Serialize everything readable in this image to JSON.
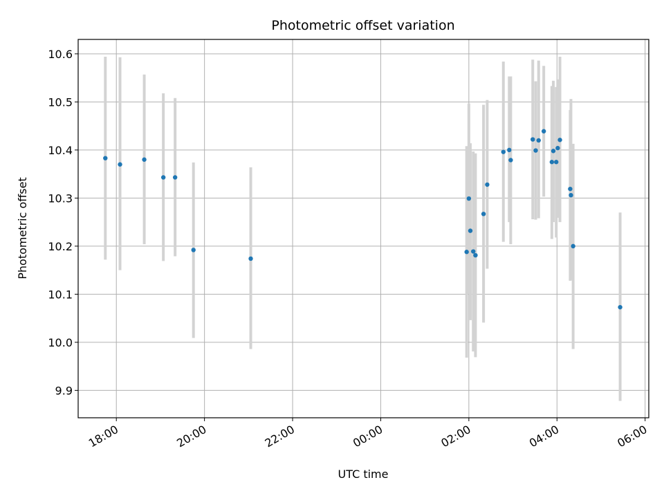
{
  "chart_data": {
    "type": "scatter",
    "title": "Photometric offset variation",
    "xlabel": "UTC time",
    "ylabel": "Photometric offset",
    "grid": true,
    "x_ticks": [
      "18:00",
      "20:00",
      "22:00",
      "00:00",
      "02:00",
      "04:00",
      "06:00"
    ],
    "y_ticks": [
      "9.9",
      "10.0",
      "10.1",
      "10.2",
      "10.3",
      "10.4",
      "10.5",
      "10.6"
    ],
    "xlim": [
      "17:08",
      "06:05"
    ],
    "ylim": [
      9.843,
      10.63
    ],
    "colors": {
      "points": "#1f77b4",
      "error_bars": "#d3d3d3",
      "grid": "#b0b0b0"
    },
    "points": [
      {
        "x": "17:45",
        "y": 10.383,
        "ylo": 10.172,
        "yhi": 10.594
      },
      {
        "x": "18:05",
        "y": 10.37,
        "ylo": 10.15,
        "yhi": 10.593
      },
      {
        "x": "18:38",
        "y": 10.38,
        "ylo": 10.204,
        "yhi": 10.557
      },
      {
        "x": "19:04",
        "y": 10.343,
        "ylo": 10.169,
        "yhi": 10.518
      },
      {
        "x": "19:20",
        "y": 10.343,
        "ylo": 10.179,
        "yhi": 10.508
      },
      {
        "x": "19:45",
        "y": 10.192,
        "ylo": 10.009,
        "yhi": 10.374
      },
      {
        "x": "21:03",
        "y": 10.174,
        "ylo": 9.986,
        "yhi": 10.364
      },
      {
        "x": "01:57",
        "y": 10.188,
        "ylo": 9.968,
        "yhi": 10.408
      },
      {
        "x": "02:00",
        "y": 10.299,
        "ylo": 10.1,
        "yhi": 10.497
      },
      {
        "x": "02:02",
        "y": 10.232,
        "ylo": 10.046,
        "yhi": 10.414
      },
      {
        "x": "02:06",
        "y": 10.189,
        "ylo": 9.981,
        "yhi": 10.397
      },
      {
        "x": "02:09",
        "y": 10.181,
        "ylo": 9.969,
        "yhi": 10.393
      },
      {
        "x": "02:20",
        "y": 10.267,
        "ylo": 10.041,
        "yhi": 10.494
      },
      {
        "x": "02:25",
        "y": 10.328,
        "ylo": 10.153,
        "yhi": 10.504
      },
      {
        "x": "02:47",
        "y": 10.396,
        "ylo": 10.209,
        "yhi": 10.584
      },
      {
        "x": "02:55",
        "y": 10.4,
        "ylo": 10.25,
        "yhi": 10.553
      },
      {
        "x": "02:57",
        "y": 10.379,
        "ylo": 10.204,
        "yhi": 10.553
      },
      {
        "x": "03:27",
        "y": 10.422,
        "ylo": 10.256,
        "yhi": 10.588
      },
      {
        "x": "03:31",
        "y": 10.399,
        "ylo": 10.255,
        "yhi": 10.543
      },
      {
        "x": "03:35",
        "y": 10.42,
        "ylo": 10.258,
        "yhi": 10.586
      },
      {
        "x": "03:42",
        "y": 10.439,
        "ylo": 10.303,
        "yhi": 10.575
      },
      {
        "x": "03:53",
        "y": 10.375,
        "ylo": 10.215,
        "yhi": 10.533
      },
      {
        "x": "03:55",
        "y": 10.398,
        "ylo": 10.25,
        "yhi": 10.544
      },
      {
        "x": "03:59",
        "y": 10.375,
        "ylo": 10.218,
        "yhi": 10.531
      },
      {
        "x": "04:01",
        "y": 10.404,
        "ylo": 10.259,
        "yhi": 10.547
      },
      {
        "x": "04:04",
        "y": 10.421,
        "ylo": 10.25,
        "yhi": 10.594
      },
      {
        "x": "04:18",
        "y": 10.319,
        "ylo": 10.128,
        "yhi": 10.483
      },
      {
        "x": "04:19",
        "y": 10.306,
        "ylo": 10.13,
        "yhi": 10.506
      },
      {
        "x": "04:22",
        "y": 10.2,
        "ylo": 9.986,
        "yhi": 10.413
      },
      {
        "x": "05:26",
        "y": 10.073,
        "ylo": 9.878,
        "yhi": 10.27
      }
    ]
  }
}
